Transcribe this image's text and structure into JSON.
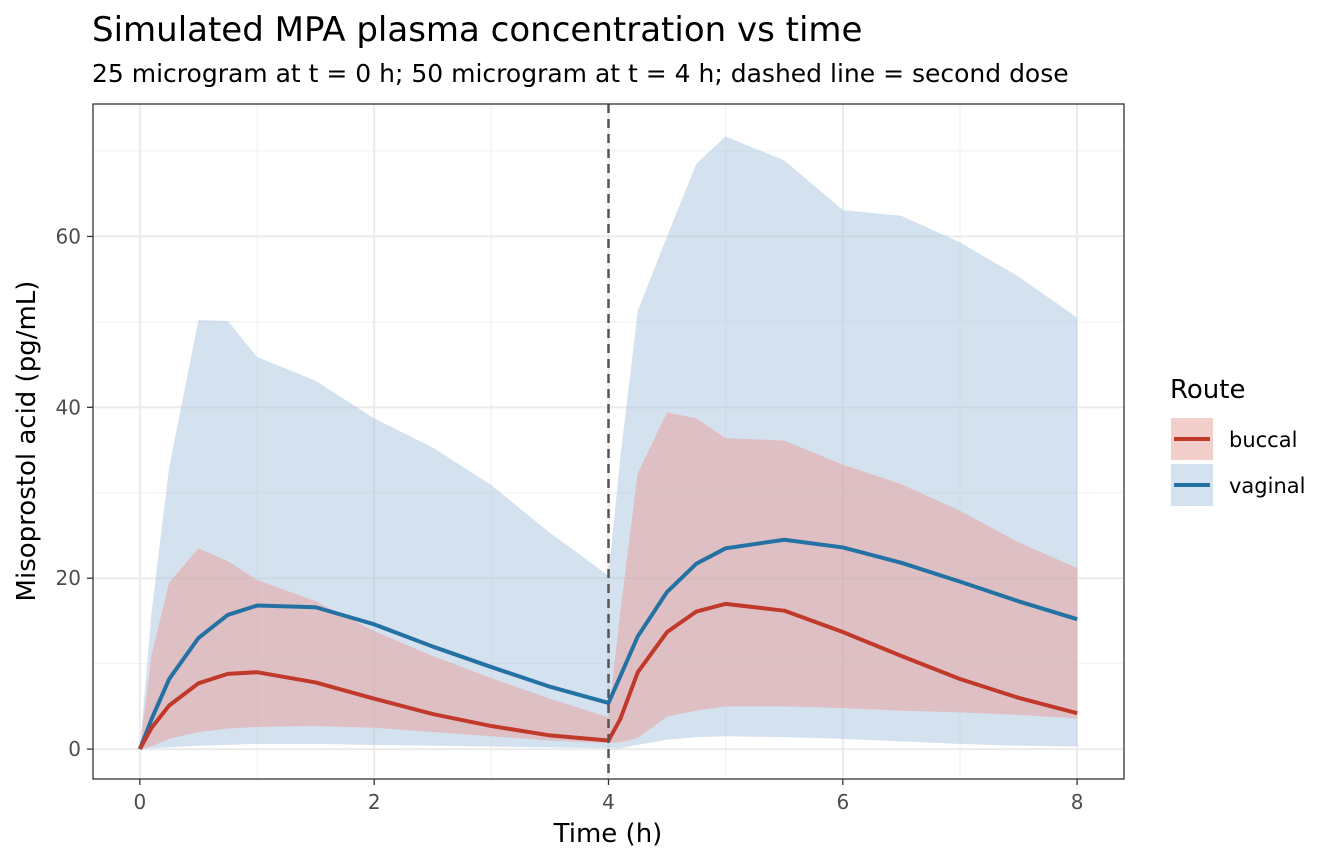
{
  "chart_data": {
    "type": "line",
    "title": "Simulated MPA plasma concentration vs time",
    "subtitle": "25 microgram at t = 0 h; 50 microgram at t = 4 h; dashed line = second dose",
    "xlabel": "Time (h)",
    "ylabel": "Misoprostol acid (pg/mL)",
    "xlim": [
      -0.4,
      8.4
    ],
    "ylim": [
      -3.5,
      75.5
    ],
    "x_ticks": [
      "0",
      "2",
      "4",
      "6",
      "8"
    ],
    "y_ticks": [
      "0",
      "20",
      "40",
      "60"
    ],
    "x_tick_values": [
      0,
      2,
      4,
      6,
      8
    ],
    "y_tick_values": [
      0,
      20,
      40,
      60
    ],
    "grid": true,
    "vline": {
      "x": 4,
      "style": "dashed",
      "color": "#555555"
    },
    "legend": {
      "title": "Route",
      "position": "right"
    },
    "series": [
      {
        "name": "buccal",
        "color": "#c0392b",
        "band_color": "#e8a09a",
        "x": [
          0,
          0.1,
          0.25,
          0.5,
          0.75,
          1,
          1.5,
          2,
          2.5,
          3,
          3.5,
          4,
          4.1,
          4.25,
          4.5,
          4.75,
          5,
          5.5,
          6,
          6.5,
          7,
          7.5,
          8
        ],
        "median": [
          0,
          2.5,
          5.1,
          7.7,
          8.8,
          9.0,
          7.8,
          5.9,
          4.1,
          2.7,
          1.6,
          1.0,
          3.5,
          9.0,
          13.7,
          16.1,
          17.0,
          16.2,
          13.7,
          10.9,
          8.2,
          6.0,
          4.2
        ],
        "upper": [
          0,
          11,
          19.5,
          23.5,
          22.0,
          19.8,
          17.3,
          13.8,
          10.9,
          8.3,
          5.9,
          3.7,
          16,
          32.3,
          39.4,
          38.7,
          36.4,
          36.1,
          33.3,
          31.0,
          27.9,
          24.2,
          21.2
        ],
        "lower": [
          0,
          0.3,
          1.2,
          2.0,
          2.4,
          2.6,
          2.7,
          2.5,
          2.0,
          1.5,
          1.0,
          0.7,
          0.8,
          1.3,
          3.8,
          4.5,
          5.0,
          5.0,
          4.8,
          4.5,
          4.3,
          4.0,
          3.6
        ]
      },
      {
        "name": "vaginal",
        "color": "#2471a3",
        "band_color": "#a9c4de",
        "x": [
          0,
          0.1,
          0.25,
          0.5,
          0.75,
          1,
          1.5,
          2,
          2.5,
          3,
          3.5,
          4,
          4.1,
          4.25,
          4.5,
          4.75,
          5,
          5.5,
          6,
          6.5,
          7,
          7.5,
          8
        ],
        "median": [
          0,
          3.5,
          8.2,
          13.0,
          15.7,
          16.8,
          16.6,
          14.6,
          12.0,
          9.6,
          7.3,
          5.4,
          8.5,
          13.2,
          18.4,
          21.7,
          23.5,
          24.5,
          23.6,
          21.8,
          19.6,
          17.3,
          15.2
        ],
        "upper": [
          0,
          16,
          33,
          50.2,
          50.1,
          45.9,
          43.1,
          38.7,
          35.3,
          30.9,
          25.3,
          20.3,
          34,
          51.3,
          60.0,
          68.5,
          71.7,
          68.9,
          63.1,
          62.4,
          59.3,
          55.3,
          50.5
        ],
        "lower": [
          0,
          0.1,
          0.2,
          0.4,
          0.5,
          0.6,
          0.6,
          0.5,
          0.4,
          0.3,
          0.2,
          0.1,
          0.1,
          0.5,
          1.1,
          1.4,
          1.5,
          1.4,
          1.2,
          0.9,
          0.6,
          0.4,
          0.3
        ]
      }
    ]
  }
}
